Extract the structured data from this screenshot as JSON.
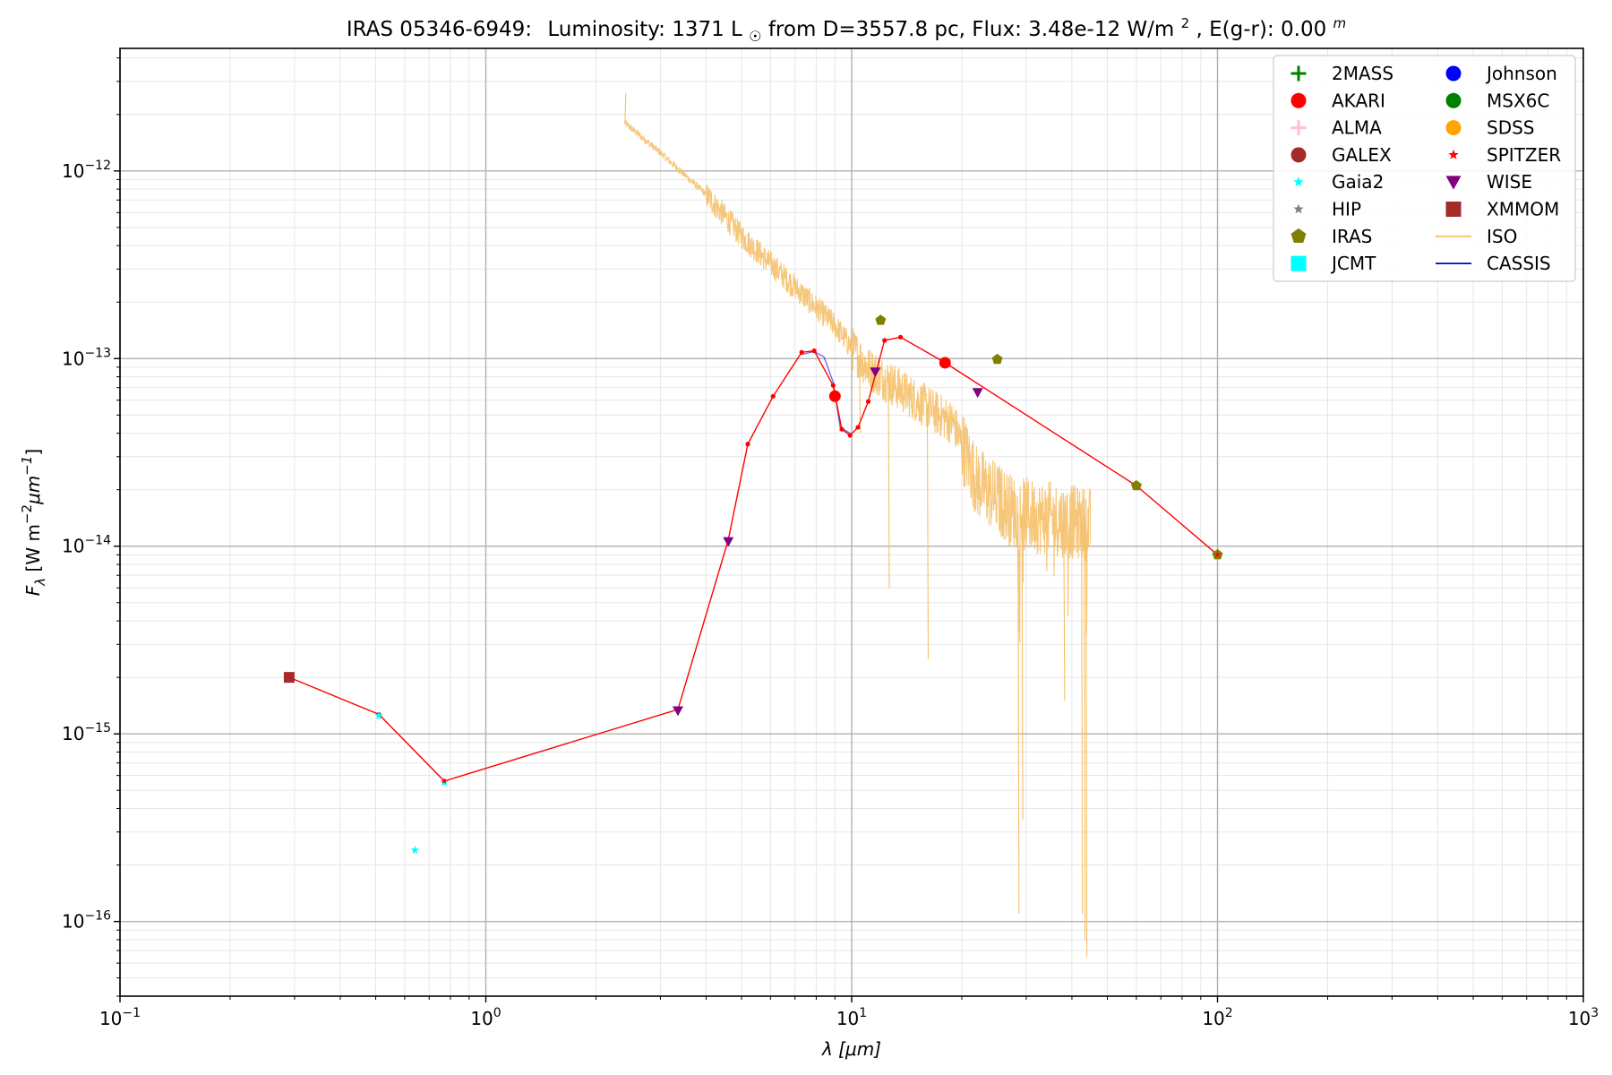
{
  "chart_data": {
    "type": "scatter",
    "title": {
      "object": "IRAS 05346-6949:",
      "lum_label": "Luminosity: 1371 L",
      "lum_sym": "☉",
      "from_text": " from D=3557.8 pc, Flux: 3.48e-12 W/m",
      "flux_exp": "2",
      "ext_text": ", E(g-r): 0.00",
      "ext_exp": "m"
    },
    "xlabel": {
      "sym": "λ",
      "unit": " [μm]"
    },
    "ylabel": {
      "sym": "F",
      "sub": "λ",
      "unit_a": " [W m",
      "exp_a": "−2",
      "unit_b": "μm",
      "exp_b": "−1",
      "unit_c": "]"
    },
    "xscale": "log",
    "yscale": "log",
    "xlim": [
      0.1,
      1000
    ],
    "ylim": [
      4e-17,
      4.5e-12
    ],
    "grid": true,
    "x_ticks": [
      {
        "value": 0.1,
        "base": "10",
        "exp": "−1"
      },
      {
        "value": 1,
        "base": "10",
        "exp": "0"
      },
      {
        "value": 10,
        "base": "10",
        "exp": "1"
      },
      {
        "value": 100,
        "base": "10",
        "exp": "2"
      },
      {
        "value": 1000,
        "base": "10",
        "exp": "3"
      }
    ],
    "y_ticks": [
      {
        "value": 1e-16,
        "base": "10",
        "exp": "−16"
      },
      {
        "value": 1e-15,
        "base": "10",
        "exp": "−15"
      },
      {
        "value": 1e-14,
        "base": "10",
        "exp": "−14"
      },
      {
        "value": 1e-13,
        "base": "10",
        "exp": "−13"
      },
      {
        "value": 1e-12,
        "base": "10",
        "exp": "−12"
      }
    ],
    "legend_position": "top-right",
    "legend": [
      {
        "name": "2MASS",
        "color": "#008000",
        "marker": "plus"
      },
      {
        "name": "AKARI",
        "color": "#ff0000",
        "marker": "circle"
      },
      {
        "name": "ALMA",
        "color": "#ffc0cb",
        "marker": "plus"
      },
      {
        "name": "GALEX",
        "color": "#a52a2a",
        "marker": "circle"
      },
      {
        "name": "Gaia2",
        "color": "#00ffff",
        "marker": "star-small"
      },
      {
        "name": "HIP",
        "color": "#808080",
        "marker": "star-small"
      },
      {
        "name": "IRAS",
        "color": "#808000",
        "marker": "pentagon"
      },
      {
        "name": "JCMT",
        "color": "#00ffff",
        "marker": "square"
      },
      {
        "name": "Johnson",
        "color": "#0000ff",
        "marker": "circle"
      },
      {
        "name": "MSX6C",
        "color": "#008000",
        "marker": "circle"
      },
      {
        "name": "SDSS",
        "color": "#ffa500",
        "marker": "circle"
      },
      {
        "name": "SPITZER",
        "color": "#ff0000",
        "marker": "star-small"
      },
      {
        "name": "WISE",
        "color": "#800080",
        "marker": "triangle-down"
      },
      {
        "name": "XMMOM",
        "color": "#a52a2a",
        "marker": "square"
      },
      {
        "name": "ISO",
        "color": "#f5c06a",
        "marker": "line"
      },
      {
        "name": "CASSIS",
        "color": "#0000cd",
        "marker": "line"
      }
    ],
    "sed_line": {
      "color": "#ff0000",
      "points": [
        [
          0.29,
          2e-15
        ],
        [
          0.51,
          1.27e-15
        ],
        [
          0.77,
          5.6e-16
        ],
        [
          3.35,
          1.35e-15
        ],
        [
          4.6,
          1.08e-14
        ],
        [
          5.2,
          3.5e-14
        ],
        [
          6.1,
          6.3e-14
        ],
        [
          7.3,
          1.08e-13
        ],
        [
          7.9,
          1.1e-13
        ],
        [
          8.9,
          7.2e-14
        ],
        [
          9.4,
          4.2e-14
        ],
        [
          9.9,
          3.9e-14
        ],
        [
          10.4,
          4.3e-14
        ],
        [
          11.1,
          5.9e-14
        ],
        [
          12.3,
          1.25e-13
        ],
        [
          13.6,
          1.3e-13
        ],
        [
          18,
          9.5e-14
        ],
        [
          60,
          2.1e-14
        ],
        [
          100,
          9e-15
        ]
      ]
    },
    "cassis_line": {
      "color": "#0000cd",
      "points": [
        [
          7.3,
          1.05e-13
        ],
        [
          7.9,
          1.09e-13
        ],
        [
          8.4,
          1.02e-13
        ],
        [
          8.9,
          7.5e-14
        ],
        [
          9.3,
          4.3e-14
        ],
        [
          9.9,
          4e-14
        ]
      ]
    },
    "iso_spectrum": {
      "color": "#f5c06a",
      "anchors": [
        [
          2.4,
          1.8e-12
        ],
        [
          3.0,
          1.25e-12
        ],
        [
          4.0,
          7.5e-13
        ],
        [
          5.0,
          4.5e-13
        ],
        [
          7.0,
          2.4e-13
        ],
        [
          9.0,
          1.5e-13
        ],
        [
          11.0,
          9e-14
        ],
        [
          15.0,
          6e-14
        ],
        [
          19.0,
          4.5e-14
        ],
        [
          22.0,
          2.2e-14
        ],
        [
          28.0,
          1.5e-14
        ],
        [
          35.0,
          1.4e-14
        ],
        [
          45.0,
          1.3e-14
        ]
      ],
      "dips": [
        [
          2.4,
          2.6e-12
        ],
        [
          10.5,
          4e-14
        ],
        [
          12.6,
          6e-15
        ],
        [
          16.1,
          2.5e-15
        ],
        [
          28.5,
          1.1e-16
        ],
        [
          29.2,
          3.5e-16
        ],
        [
          38,
          1.5e-15
        ],
        [
          42.5,
          1.1e-16
        ],
        [
          43.2,
          8e-17
        ],
        [
          43.7,
          6.5e-17
        ]
      ]
    },
    "series": [
      {
        "name": "AKARI",
        "marker": "circle",
        "color": "#ff0000",
        "size": 13,
        "points": [
          [
            9.0,
            6.3e-14
          ],
          [
            18.0,
            9.5e-14
          ]
        ]
      },
      {
        "name": "IRAS",
        "marker": "pentagon",
        "color": "#808000",
        "size": 12,
        "points": [
          [
            12.0,
            1.6e-13
          ],
          [
            25.0,
            9.9e-14
          ],
          [
            60.0,
            2.1e-14
          ],
          [
            100.0,
            9e-15
          ]
        ]
      },
      {
        "name": "WISE",
        "marker": "triangle-down",
        "color": "#800080",
        "size": 12,
        "points": [
          [
            3.35,
            1.33e-15
          ],
          [
            4.6,
            1.06e-14
          ],
          [
            11.6,
            8.5e-14
          ],
          [
            22.1,
            6.6e-14
          ]
        ]
      },
      {
        "name": "Gaia2",
        "marker": "star",
        "color": "#00ffff",
        "size": 10,
        "points": [
          [
            0.51,
            1.25e-15
          ],
          [
            0.64,
            2.4e-16
          ],
          [
            0.77,
            5.5e-16
          ]
        ]
      },
      {
        "name": "XMMOM",
        "marker": "square",
        "color": "#a52a2a",
        "size": 12,
        "points": [
          [
            0.29,
            2e-15
          ]
        ]
      },
      {
        "name": "SPITZER",
        "marker": "star",
        "color": "#ff0000",
        "size": 7,
        "points": [
          [
            0.77,
            5.6e-16
          ],
          [
            100.0,
            9e-15
          ]
        ]
      }
    ]
  }
}
